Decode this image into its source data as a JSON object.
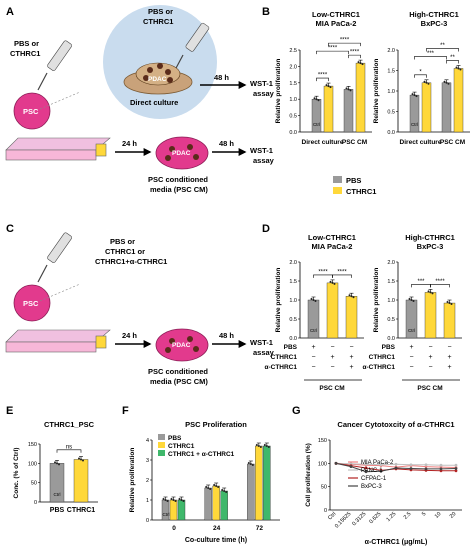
{
  "panel_letters": [
    "A",
    "B",
    "C",
    "D",
    "E",
    "F",
    "G"
  ],
  "A": {
    "pbs_ctrl": "PBS or CTHRC1",
    "pbs_ctrl_top": "PBS or CTHRC1",
    "pdac": "PDAC",
    "direct": "Direct culture",
    "h48a": "48 h",
    "wst1a": "WST-1",
    "assay": "assay",
    "psc": "PSC",
    "h24": "24 h",
    "h48b": "48 h",
    "wst1b": "WST-1",
    "assayb": "assay",
    "pdac2": "PDAC",
    "media1": "PSC conditioned",
    "media2": "media (PSC CM)"
  },
  "C": {
    "pbs": "PBS or",
    "ct": "CTHRC1 or",
    "ctab": "CTHRC1+α-CTHRC1",
    "psc": "PSC",
    "h24": "24 h",
    "h48": "48 h",
    "pdac": "PDAC",
    "wst1": "WST-1",
    "assay": "assay",
    "media1": "PSC conditioned",
    "media2": "media (PSC CM)"
  },
  "legend_BD": [
    "PBS",
    "CTHRC1"
  ],
  "colors": {
    "gray": "#9a9a9a",
    "yellow": "#ffd83a",
    "green": "#3fb86b",
    "dark": "#555555",
    "pink": "#e23a8d",
    "pdac": "#5a2b1a"
  },
  "chart_data": [
    {
      "panel": "B-left",
      "type": "bar",
      "title": "Low-CTHRC1",
      "subtitle": "MIA PaCa-2",
      "ylabel": "Relative proliferation",
      "ylim": [
        0,
        2.5
      ],
      "yticks": [
        "0.0",
        "0.5",
        "1.0",
        "1.5",
        "2.0",
        "2.5"
      ],
      "categories": [
        "Direct culture",
        "PSC CM"
      ],
      "series": [
        {
          "name": "PBS",
          "values": [
            1.0,
            1.3
          ]
        },
        {
          "name": "CTHRC1",
          "values": [
            1.4,
            2.1
          ]
        }
      ],
      "ctrl": "Ctrl",
      "sig": [
        "****",
        "****",
        "****",
        "****"
      ]
    },
    {
      "panel": "B-right",
      "type": "bar",
      "title": "High-CTHRC1",
      "subtitle": "BxPC-3",
      "ylabel": "Relative proliferation",
      "ylim": [
        0,
        2.0
      ],
      "yticks": [
        "0.0",
        "0.5",
        "1.0",
        "1.5",
        "2.0"
      ],
      "categories": [
        "Direct culture",
        "PSC CM"
      ],
      "series": [
        {
          "name": "PBS",
          "values": [
            0.9,
            1.2
          ]
        },
        {
          "name": "CTHRC1",
          "values": [
            1.2,
            1.55
          ]
        }
      ],
      "ctrl": "Ctrl",
      "sig": [
        "*",
        "**",
        "***",
        "**"
      ]
    },
    {
      "panel": "D-left",
      "type": "bar",
      "title": "Low-CTHRC1",
      "subtitle": "MIA PaCa-2",
      "ylabel": "Relative proliferation",
      "ylim": [
        0,
        2.0
      ],
      "yticks": [
        "0.0",
        "0.5",
        "1.0",
        "1.5",
        "2.0"
      ],
      "values": [
        1.0,
        1.45,
        1.1
      ],
      "rows": [
        "PBS",
        "CTHRC1",
        "α-CTHRC1"
      ],
      "signs": [
        [
          "+",
          "−",
          "−"
        ],
        [
          "−",
          "+",
          "+"
        ],
        [
          "−",
          "−",
          "+"
        ]
      ],
      "group": "PSC CM",
      "ctrl": "Ctrl",
      "sig": [
        "****",
        "****"
      ]
    },
    {
      "panel": "D-right",
      "type": "bar",
      "title": "High-CTHRC1",
      "subtitle": "BxPC-3",
      "ylabel": "Relative proliferation",
      "ylim": [
        0,
        2.0
      ],
      "yticks": [
        "0.0",
        "0.5",
        "1.0",
        "1.5",
        "2.0"
      ],
      "values": [
        1.0,
        1.2,
        0.92
      ],
      "rows": [
        "PBS",
        "CTHRC1",
        "α-CTHRC1"
      ],
      "signs": [
        [
          "+",
          "−",
          "−"
        ],
        [
          "−",
          "+",
          "+"
        ],
        [
          "−",
          "−",
          "+"
        ]
      ],
      "group": "PSC CM",
      "ctrl": "Ctrl",
      "sig": [
        "***",
        "****"
      ]
    },
    {
      "panel": "E",
      "type": "bar",
      "title": "CTHRC1_PSC",
      "ylabel": "Conc. (% of Ctrl)",
      "ylim": [
        0,
        150
      ],
      "yticks": [
        "0",
        "50",
        "100",
        "150"
      ],
      "categories": [
        "PBS",
        "CTHRC1"
      ],
      "values": [
        100,
        110
      ],
      "ctrl": "Ctrl",
      "sig": [
        "ns"
      ]
    },
    {
      "panel": "F",
      "type": "bar",
      "title": "PSC Proliferation",
      "ylabel": "Relative proliferation",
      "ylim": [
        0,
        4
      ],
      "yticks": [
        "0",
        "1",
        "2",
        "3",
        "4"
      ],
      "xlabel": "Co-culture time (h)",
      "categories": [
        "0",
        "24",
        "72"
      ],
      "series": [
        {
          "name": "PBS",
          "values": [
            1.0,
            1.6,
            2.8
          ]
        },
        {
          "name": "CTHRC1",
          "values": [
            1.0,
            1.7,
            3.7
          ]
        },
        {
          "name": "CTHRC1 + α-CTHRC1",
          "values": [
            1.0,
            1.45,
            3.7
          ]
        }
      ],
      "ctrl": "Ctrl"
    },
    {
      "panel": "G",
      "type": "line",
      "title": "Cancer Cytotoxcity of α-CTHRC1",
      "ylabel": "Cell proliferation (%)",
      "ylim": [
        0,
        150
      ],
      "yticks": [
        "0",
        "50",
        "100",
        "150"
      ],
      "xlabel": "α-CTHRC1 (μg/mL)",
      "x": [
        "Ctrl",
        "0.15625",
        "0.3125",
        "0.625",
        "1.25",
        "2.5",
        "5",
        "10",
        "20"
      ],
      "series": [
        {
          "name": "MIA PaCa-2",
          "values": [
            100,
            98,
            96,
            95,
            92,
            95,
            93,
            92,
            91
          ]
        },
        {
          "name": "PANC-1",
          "values": [
            100,
            99,
            98,
            97,
            98,
            97,
            97,
            96,
            96
          ]
        },
        {
          "name": "CFPAC-1",
          "values": [
            100,
            95,
            90,
            85,
            88,
            86,
            85,
            84,
            84
          ]
        },
        {
          "name": "BxPC-3",
          "values": [
            100,
            93,
            82,
            83,
            90,
            89,
            88,
            88,
            89
          ]
        }
      ],
      "colors": [
        "#f08080",
        "#c0c0c0",
        "#b22222",
        "#444444"
      ]
    }
  ]
}
